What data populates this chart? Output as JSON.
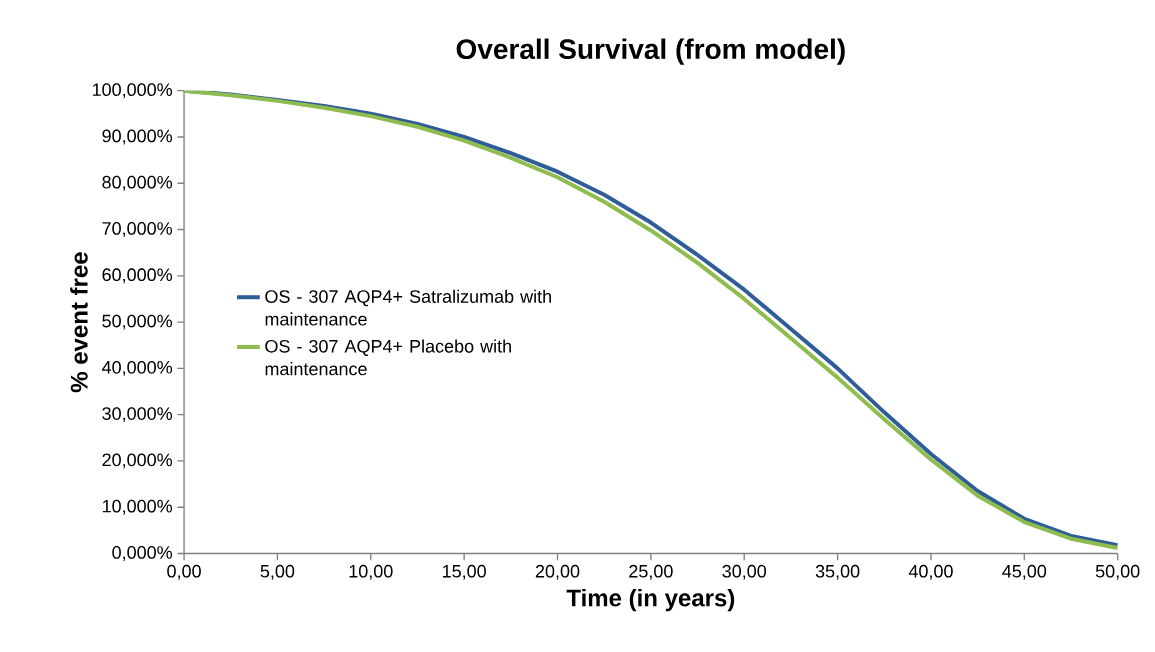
{
  "chart_data": {
    "type": "line",
    "title": "Overall Survival (from model)",
    "xlabel": "Time (in years)",
    "ylabel": "% event free",
    "x": [
      0,
      2.5,
      5,
      7.5,
      10,
      12.5,
      15,
      17.5,
      20,
      22.5,
      25,
      27.5,
      30,
      32.5,
      35,
      37.5,
      40,
      42.5,
      45,
      47.5,
      50
    ],
    "series": [
      {
        "name": "OS - 307 AQP4+ Satralizumab with maintenance",
        "color": "#2f5d97",
        "values": [
          100,
          99.2,
          98,
          96.7,
          95,
          92.8,
          90,
          86.5,
          82.5,
          77.5,
          71.5,
          64.5,
          57,
          48.5,
          40,
          30.5,
          21.5,
          13.5,
          7.5,
          3.8,
          1.8
        ]
      },
      {
        "name": "OS - 307 AQP4+ Placebo with maintenance",
        "color": "#8fbc4f",
        "values": [
          100,
          99,
          97.8,
          96.3,
          94.5,
          92.2,
          89.2,
          85.5,
          81.3,
          76,
          69.8,
          62.8,
          55,
          46.5,
          38,
          29,
          20.3,
          12.5,
          6.8,
          3.2,
          1.2
        ]
      }
    ],
    "xlim": [
      0,
      50
    ],
    "ylim": [
      0,
      100
    ],
    "xticks": [
      {
        "value": 0,
        "label": "0,00"
      },
      {
        "value": 5,
        "label": "5,00"
      },
      {
        "value": 10,
        "label": "10,00"
      },
      {
        "value": 15,
        "label": "15,00"
      },
      {
        "value": 20,
        "label": "20,00"
      },
      {
        "value": 25,
        "label": "25,00"
      },
      {
        "value": 30,
        "label": "30,00"
      },
      {
        "value": 35,
        "label": "35,00"
      },
      {
        "value": 40,
        "label": "40,00"
      },
      {
        "value": 45,
        "label": "45,00"
      },
      {
        "value": 50,
        "label": "50,00"
      }
    ],
    "yticks": [
      {
        "value": 0,
        "label": "0,000%"
      },
      {
        "value": 10,
        "label": "10,000%"
      },
      {
        "value": 20,
        "label": "20,000%"
      },
      {
        "value": 30,
        "label": "30,000%"
      },
      {
        "value": 40,
        "label": "40,000%"
      },
      {
        "value": 50,
        "label": "50,000%"
      },
      {
        "value": 60,
        "label": "60,000%"
      },
      {
        "value": 70,
        "label": "70,000%"
      },
      {
        "value": 80,
        "label": "80,000%"
      },
      {
        "value": 90,
        "label": "90,000%"
      },
      {
        "value": 100,
        "label": "100,000%"
      }
    ],
    "grid": false,
    "legend": "left",
    "marker": "none",
    "line_style": "solid"
  }
}
